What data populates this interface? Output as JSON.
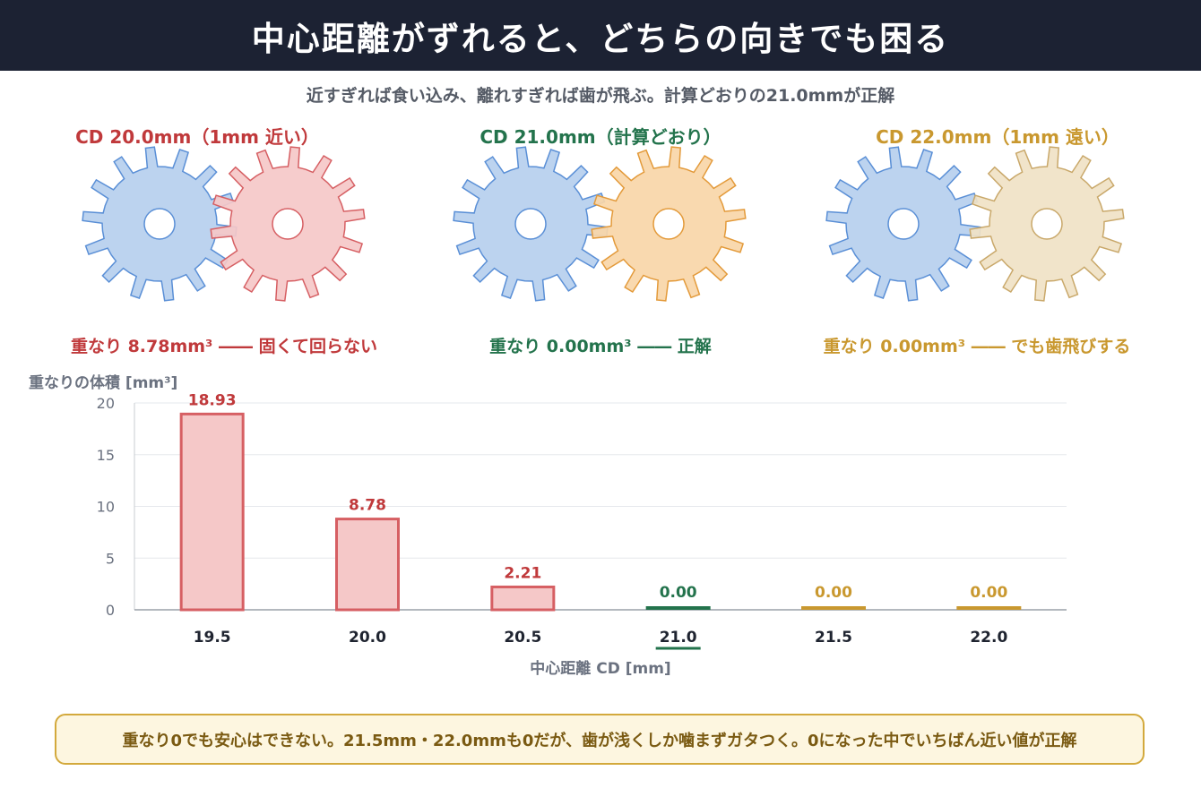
{
  "header": {
    "title": "中心距離がずれると、どちらの向きでも困る",
    "subtitle": "近すぎれば食い込み、離れすぎれば歯が飛ぶ。計算どおりの21.0mmが正解"
  },
  "colors": {
    "blue_gear": "#b6cfee",
    "blue_gear_stroke": "#5a8fd6",
    "red": "#c0393b",
    "red_fill": "#f5c8c8",
    "red_stroke": "#d65f63",
    "green": "#23734c",
    "gold": "#c9982f",
    "orange_fill": "#f8d6a8",
    "orange_stroke": "#e39a3a",
    "beige_fill": "#f0e2c6",
    "beige_stroke": "#c9a86a"
  },
  "cases": [
    {
      "title": "CD 20.0mm（1mm 近い）",
      "note": "重なり 8.78mm³ ―― 固くて回らない",
      "color": "red"
    },
    {
      "title": "CD 21.0mm（計算どおり）",
      "note": "重なり 0.00mm³ ―― 正解",
      "color": "green"
    },
    {
      "title": "CD 22.0mm（1mm 遠い）",
      "note": "重なり 0.00mm³ ―― でも歯飛びする",
      "color": "gold"
    }
  ],
  "chart_data": {
    "type": "bar",
    "ylabel": "重なりの体積 [mm³]",
    "xlabel": "中心距離 CD [mm]",
    "categories": [
      "19.5",
      "20.0",
      "20.5",
      "21.0",
      "21.5",
      "22.0"
    ],
    "values": [
      18.93,
      8.78,
      2.21,
      0.0,
      0.0,
      0.0
    ],
    "value_labels": [
      "18.93",
      "8.78",
      "2.21",
      "0.00",
      "0.00",
      "0.00"
    ],
    "ylim": [
      0,
      20
    ],
    "yticks": [
      "0",
      "5",
      "10",
      "15",
      "20"
    ],
    "grid": true,
    "highlight_category": "21.0"
  },
  "footer": {
    "text": "重なり0でも安心はできない。21.5mm・22.0mmも0だが、歯が浅くしか噛まずガタつく。0になった中でいちばん近い値が正解"
  }
}
